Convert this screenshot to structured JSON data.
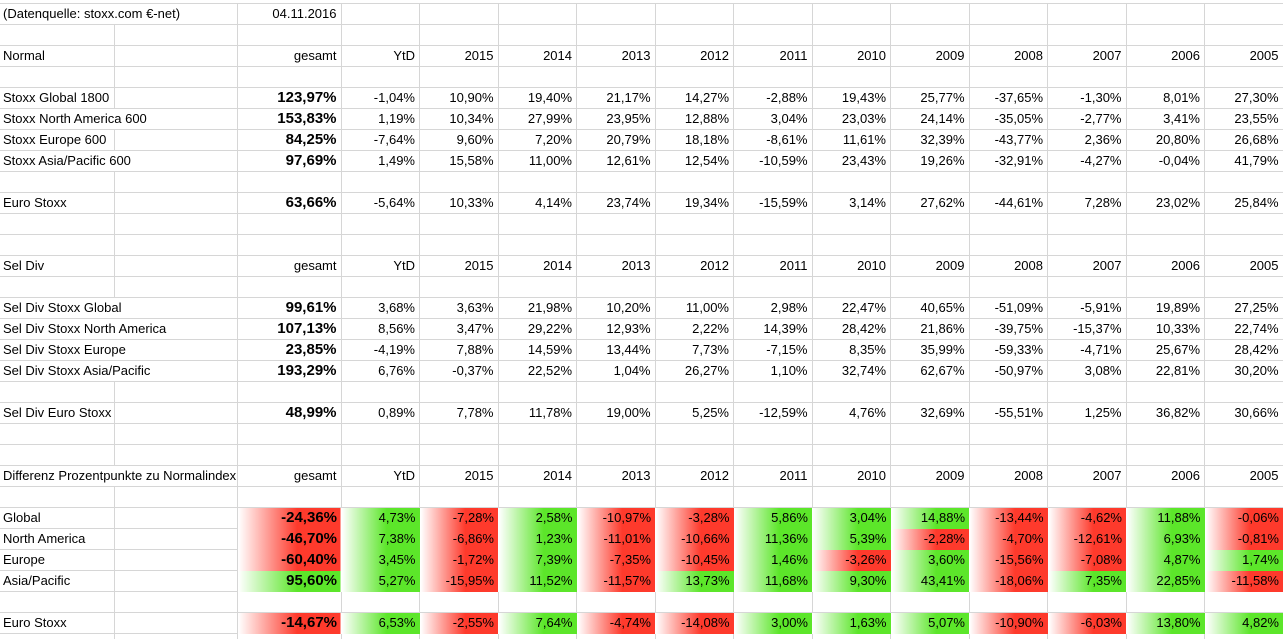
{
  "source_note": "(Datenquelle: stoxx.com €-net)",
  "date": "04.11.2016",
  "gesamt_label": "gesamt",
  "year_columns": [
    "YtD",
    "2015",
    "2014",
    "2013",
    "2012",
    "2011",
    "2010",
    "2009",
    "2008",
    "2007",
    "2006",
    "2005"
  ],
  "colors": {
    "positive": "#5ce62a",
    "negative": "#fe3a2c",
    "gridline": "#d6d6d6",
    "text": "#000000",
    "background": "#ffffff"
  },
  "sections": [
    {
      "title": "Normal",
      "colored": false,
      "rows": [
        {
          "label": "Stoxx Global 1800",
          "gesamt": "123,97%",
          "values": [
            "-1,04%",
            "10,90%",
            "19,40%",
            "21,17%",
            "14,27%",
            "-2,88%",
            "19,43%",
            "25,77%",
            "-37,65%",
            "-1,30%",
            "8,01%",
            "27,30%"
          ]
        },
        {
          "label": "Stoxx North America 600",
          "gesamt": "153,83%",
          "values": [
            "1,19%",
            "10,34%",
            "27,99%",
            "23,95%",
            "12,88%",
            "3,04%",
            "23,03%",
            "24,14%",
            "-35,05%",
            "-2,77%",
            "3,41%",
            "23,55%"
          ]
        },
        {
          "label": "Stoxx Europe 600",
          "gesamt": "84,25%",
          "values": [
            "-7,64%",
            "9,60%",
            "7,20%",
            "20,79%",
            "18,18%",
            "-8,61%",
            "11,61%",
            "32,39%",
            "-43,77%",
            "2,36%",
            "20,80%",
            "26,68%"
          ]
        },
        {
          "label": "Stoxx Asia/Pacific 600",
          "gesamt": "97,69%",
          "values": [
            "1,49%",
            "15,58%",
            "11,00%",
            "12,61%",
            "12,54%",
            "-10,59%",
            "23,43%",
            "19,26%",
            "-32,91%",
            "-4,27%",
            "-0,04%",
            "41,79%"
          ]
        },
        {
          "label": "Euro Stoxx",
          "gesamt": "63,66%",
          "values": [
            "-5,64%",
            "10,33%",
            "4,14%",
            "23,74%",
            "19,34%",
            "-15,59%",
            "3,14%",
            "27,62%",
            "-44,61%",
            "7,28%",
            "23,02%",
            "25,84%"
          ]
        }
      ]
    },
    {
      "title": "Sel Div",
      "colored": false,
      "rows": [
        {
          "label": "Sel Div Stoxx Global",
          "gesamt": "99,61%",
          "values": [
            "3,68%",
            "3,63%",
            "21,98%",
            "10,20%",
            "11,00%",
            "2,98%",
            "22,47%",
            "40,65%",
            "-51,09%",
            "-5,91%",
            "19,89%",
            "27,25%"
          ]
        },
        {
          "label": "Sel Div Stoxx North America",
          "gesamt": "107,13%",
          "values": [
            "8,56%",
            "3,47%",
            "29,22%",
            "12,93%",
            "2,22%",
            "14,39%",
            "28,42%",
            "21,86%",
            "-39,75%",
            "-15,37%",
            "10,33%",
            "22,74%"
          ]
        },
        {
          "label": "Sel Div Stoxx Europe",
          "gesamt": "23,85%",
          "values": [
            "-4,19%",
            "7,88%",
            "14,59%",
            "13,44%",
            "7,73%",
            "-7,15%",
            "8,35%",
            "35,99%",
            "-59,33%",
            "-4,71%",
            "25,67%",
            "28,42%"
          ]
        },
        {
          "label": "Sel Div Stoxx Asia/Pacific",
          "gesamt": "193,29%",
          "values": [
            "6,76%",
            "-0,37%",
            "22,52%",
            "1,04%",
            "26,27%",
            "1,10%",
            "32,74%",
            "62,67%",
            "-50,97%",
            "3,08%",
            "22,81%",
            "30,20%"
          ]
        },
        {
          "label": "Sel Div Euro Stoxx",
          "gesamt": "48,99%",
          "values": [
            "0,89%",
            "7,78%",
            "11,78%",
            "19,00%",
            "5,25%",
            "-12,59%",
            "4,76%",
            "32,69%",
            "-55,51%",
            "1,25%",
            "36,82%",
            "30,66%"
          ]
        }
      ]
    },
    {
      "title": "Differenz Prozentpunkte zu Normalindex",
      "colored": true,
      "rows": [
        {
          "label": "Global",
          "gesamt": "-24,36%",
          "values": [
            "4,73%",
            "-7,28%",
            "2,58%",
            "-10,97%",
            "-3,28%",
            "5,86%",
            "3,04%",
            "14,88%",
            "-13,44%",
            "-4,62%",
            "11,88%",
            "-0,06%"
          ]
        },
        {
          "label": "North America",
          "gesamt": "-46,70%",
          "values": [
            "7,38%",
            "-6,86%",
            "1,23%",
            "-11,01%",
            "-10,66%",
            "11,36%",
            "5,39%",
            "-2,28%",
            "-4,70%",
            "-12,61%",
            "6,93%",
            "-0,81%"
          ]
        },
        {
          "label": "Europe",
          "gesamt": "-60,40%",
          "values": [
            "3,45%",
            "-1,72%",
            "7,39%",
            "-7,35%",
            "-10,45%",
            "1,46%",
            "-3,26%",
            "3,60%",
            "-15,56%",
            "-7,08%",
            "4,87%",
            "1,74%"
          ]
        },
        {
          "label": "Asia/Pacific",
          "gesamt": "95,60%",
          "values": [
            "5,27%",
            "-15,95%",
            "11,52%",
            "-11,57%",
            "13,73%",
            "11,68%",
            "9,30%",
            "43,41%",
            "-18,06%",
            "7,35%",
            "22,85%",
            "-11,58%"
          ]
        },
        {
          "label": "Euro Stoxx",
          "gesamt": "-14,67%",
          "values": [
            "6,53%",
            "-2,55%",
            "7,64%",
            "-4,74%",
            "-14,08%",
            "3,00%",
            "1,63%",
            "5,07%",
            "-10,90%",
            "-6,03%",
            "13,80%",
            "4,82%"
          ]
        }
      ]
    }
  ]
}
